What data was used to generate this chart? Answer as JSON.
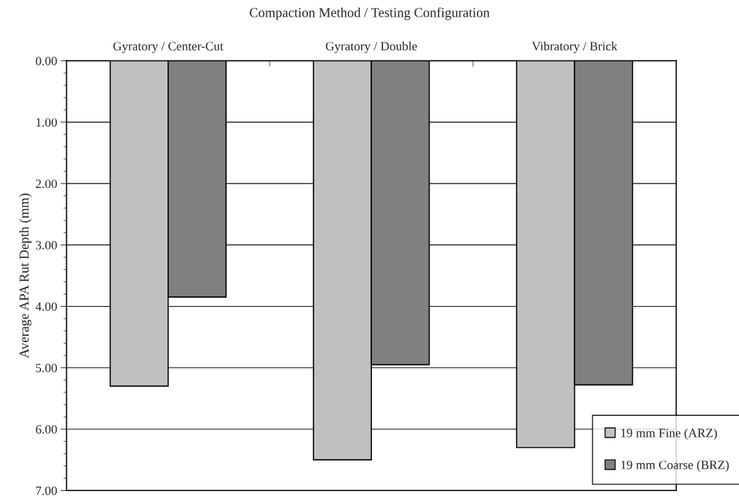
{
  "chart_data": {
    "type": "bar",
    "title": "Compaction Method / Testing Configuration",
    "ylabel": "Average APA Rut Depth (mm)",
    "categories": [
      "Gyratory / Center-Cut",
      "Gyratory / Double",
      "Vibratory / Brick"
    ],
    "series": [
      {
        "name": "19 mm Fine (ARZ)",
        "color": "#c0c0c0",
        "values": [
          5.3,
          6.5,
          6.3
        ]
      },
      {
        "name": "19 mm Coarse (BRZ)",
        "color": "#808080",
        "values": [
          3.85,
          4.95,
          5.28
        ]
      }
    ],
    "ylim": [
      7,
      0
    ],
    "yticks": [
      {
        "value": 0,
        "label": "0.00"
      },
      {
        "value": 1,
        "label": "1.00"
      },
      {
        "value": 2,
        "label": "2.00"
      },
      {
        "value": 3,
        "label": "3.00"
      },
      {
        "value": 4,
        "label": "4.00"
      },
      {
        "value": 5,
        "label": "5.00"
      },
      {
        "value": 6,
        "label": "6.00"
      },
      {
        "value": 7,
        "label": "7.00"
      }
    ],
    "grid": "y",
    "legend": "bottom right"
  }
}
